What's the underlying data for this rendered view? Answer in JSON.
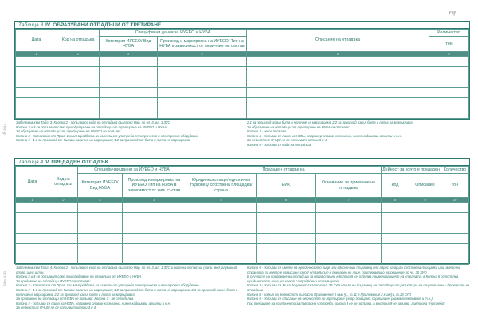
{
  "page_label": "стр. ......",
  "table3": {
    "caption": "Таблица 3",
    "title": "IV. ОБРАЗУВАНИ ОТПАДЪЦИ ОТ ТРЕТИРАНЕ",
    "group": "Специфични данни за ИУЕЕО и НУБА",
    "headers": [
      "Дата",
      "Код на отпадъка",
      "Категория ИУЕЕО/ Вид НУБА",
      "Произход и маркировка на ИУЕЕО/ Тип на НУБА в зависимост от химичния им състав",
      "Описание на отпадъка",
      "Количество",
      "тон"
    ],
    "numbers": [
      "1",
      "2",
      "3",
      "4",
      "5",
      "6"
    ]
  },
  "notes3": {
    "left": [
      "Забележка към Табл. 3: Колона 2 - попълва се кода на отпадъка съгласно Нар. по чл. 3, ал. 1 ЗУО",
      "Колони 3 и 4 се попълват само при образуване на отпадъци от третиране на ИУЕЕО и НУБА",
      "За образуване на отпадъци от третиране на ИУЕЕО се попълва:",
      "Колона 3 - Категория от Прил. 1 към Наредбата за излезли от употреба електрическо и електронно оборудване",
      "Колона 4 - 1.1 за произход от бита и наличие на маркировка; 1.2 за произход от бита и липса на маркировка;"
    ],
    "right": [
      "2.1 за произход извън бита и наличие на маркировка; 2.2 за произход извън бита и липса на маркировка",
      "За образуване на отпадъци от третиране на НУБА се попълва:",
      "Колона 3 - не се попълва",
      "Колона 4 - попълва се типа на НУБА, например оловно-киселинни, никел-кадмиеви, алкални и н.н.",
      "За дейности с ОЧЦМ не се попълват колони 3 и 4",
      "Колона 5 - попълва се вида на отпадъка"
    ]
  },
  "table4": {
    "caption": "Таблица 4",
    "title": "V. ПРЕДАДЕН ОТПАДЪК",
    "group1": "Специфични данни за ИУЕЕО и НУБА",
    "group2": "Предаден отпадък на",
    "group3": "Дейност за която е предаден",
    "group4": "Количество",
    "headers": [
      "Дата",
      "Код на отпадъка",
      "Категория ИУЕЕО/ Вид НУБА",
      "Произход и маркировка на ИУЕЕО/Тип на НУБА в зависимост от хим. състав",
      "Юридическо лице/ едноличен търговец/ собствена площадка/страна",
      "ЕИК",
      "Основание за приемане на отпадъка",
      "Код",
      "Описание",
      "тон"
    ],
    "numbers": [
      "1",
      "2",
      "3",
      "4",
      "5",
      "6",
      "7",
      "8",
      "9",
      "10"
    ]
  },
  "notes4": {
    "left": [
      "Забележка към Табл. 4: Колона 2 - попълва се кода на отпадъка съгласно Нар. по чл. 3, ал. 1 ЗУО и вида на отпадъка (напр. мед, алуминий, олово, цинк и т.н.)",
      "Колони 3 и 4 се попълват само при предаване на отпадъци от ИУЕЕО и НУБА",
      "За предаване на отпадъци ИУЕЕО се попълва:",
      "Колона 3 - Категория от Прил. 1 към Наредбата за излезли от употреба електрическо и електронно оборудване",
      "Колона 4 - 1.1 за произход от бита и наличие на маркировка; 1.2 за произход от бита и липса на маркировка; 2.1 за произход извън бита и наличие на маркировка; 2.2 за произход извън бита и липса на маркировка",
      "За предаване на отпадъци от НУБА се попълва: Колона 3 - не се попълва",
      "Колона 4 - попълва се типа на НУБА, например оловно-киселинни, никел-кадмиеви, алкални и н.н.",
      "За дейности с ОЧЦМ не се попълват колони 3 и 4"
    ],
    "right": [
      "Колона 5 - попълва се името на юридическото лице или едноличния търговец или адрес на друга собствена площадка или името на страната, за която е извършен износ/ отпадъкът е предаден на лице, притежаващо разрешение по чл. 35 ЗУО",
      "В случаите на предаване на отпадъци за друга страна в Колона 5 се попълва наименованието на страната, в Колона 6 се попълва юридическото лице, на което са предадени отпадъците",
      "Колона 7 - попълва се № на документ съгласно чл. 35 ЗУО или № на търговец на отпадъци от регистъра на търговците и брокерите на отпадъци",
      "Колона 8 - кодът на дейността съгласно Приложение 1 към §1, т.11 и Приложение 2 към §1, т.13 ЗУО",
      "Колона 9 - попълва се описание на дейността по третиране (напр. Хващане, сортиране, разкомплектоване и т.н.)",
      "При предаване на компоненти за повторна употреба, колона 8 не се попълва, а в колона 9 се записва „повторна употреба“"
    ]
  },
  "side_labels": [
    "№ 2014",
    "Обр. 4 (2)"
  ]
}
